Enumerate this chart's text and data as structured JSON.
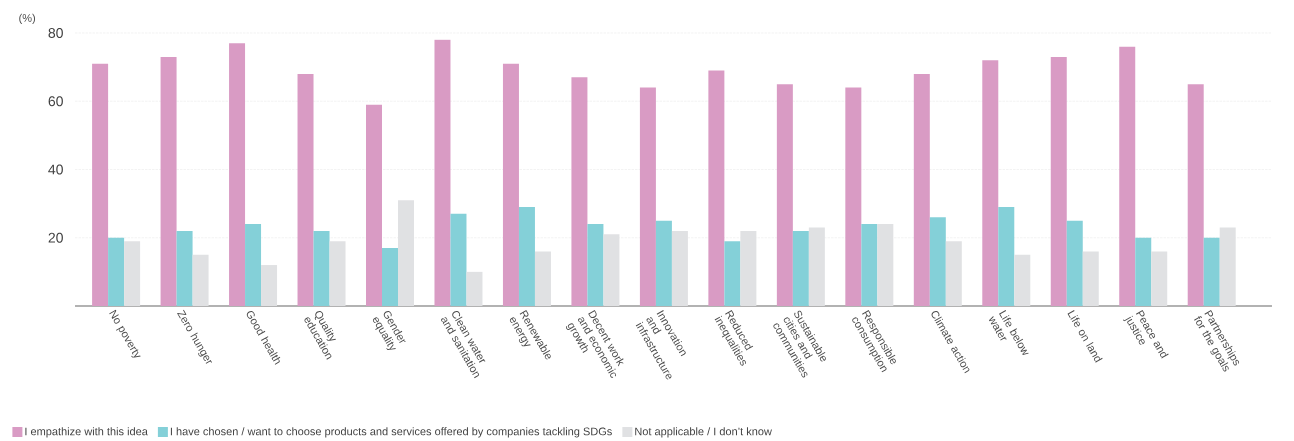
{
  "chart_data": {
    "type": "bar",
    "ylabel": "(%)",
    "categories": [
      "No poverty",
      "Zero hunger",
      "Good health",
      "Quality education",
      "Gender equality",
      "Clean water and sanitation",
      "Renewable energy",
      "Decent work and economic growth",
      "Innovation and infrastructure",
      "Reduced inequalities",
      "Sustainable cities and communities",
      "Responsible consumption",
      "Climate action",
      "Life below water",
      "Life on land",
      "Peace and justice",
      "Partnerships for the goals"
    ],
    "series": [
      {
        "name": "I empathize with this idea",
        "color": "#d99bc4",
        "values": [
          71,
          73,
          77,
          68,
          59,
          78,
          71,
          67,
          64,
          69,
          65,
          64,
          68,
          72,
          73,
          76,
          65
        ]
      },
      {
        "name": "I have chosen / want to choose products and services offered by companies tackling SDGs",
        "color": "#84d0d8",
        "values": [
          20,
          22,
          24,
          22,
          17,
          27,
          29,
          24,
          25,
          19,
          22,
          24,
          26,
          29,
          25,
          20,
          20
        ]
      },
      {
        "name": "Not applicable / I don’t know",
        "color": "#e0e1e3",
        "values": [
          19,
          15,
          12,
          19,
          31,
          10,
          16,
          21,
          22,
          22,
          23,
          24,
          19,
          15,
          16,
          16,
          23
        ]
      }
    ],
    "ylim": [
      0,
      80
    ],
    "yticks": [
      20,
      40,
      60,
      80
    ],
    "grid": "y",
    "legend": "bottom"
  }
}
